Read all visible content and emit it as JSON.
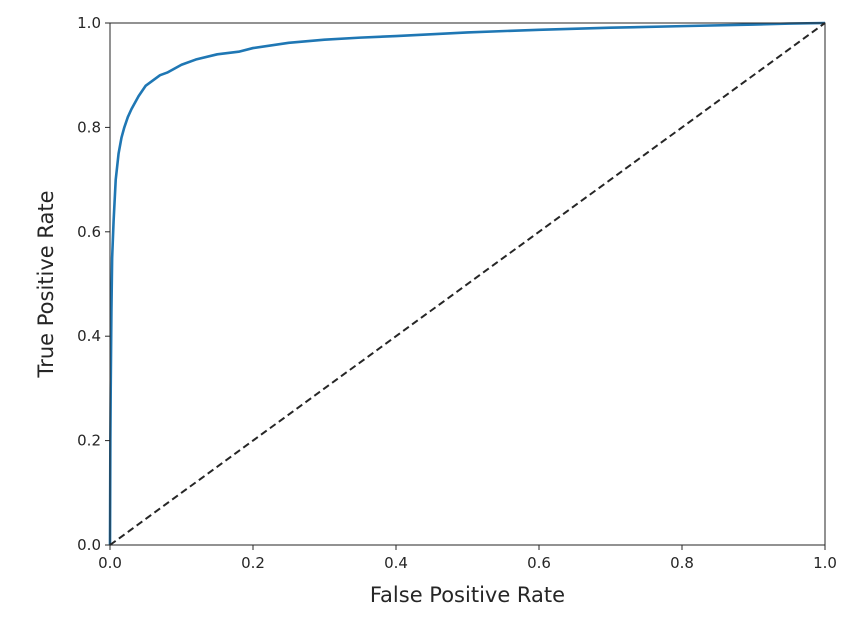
{
  "chart_data": {
    "type": "line",
    "title": "",
    "xlabel": "False Positive Rate",
    "ylabel": "True Positive Rate",
    "xlim": [
      0,
      1
    ],
    "ylim": [
      0,
      1
    ],
    "xticks": [
      0.0,
      0.2,
      0.4,
      0.6,
      0.8,
      1.0
    ],
    "yticks": [
      0.0,
      0.2,
      0.4,
      0.6,
      0.8,
      1.0
    ],
    "xtick_labels": [
      "0.0",
      "0.2",
      "0.4",
      "0.6",
      "0.8",
      "1.0"
    ],
    "ytick_labels": [
      "0.0",
      "0.2",
      "0.4",
      "0.6",
      "0.8",
      "1.0"
    ],
    "grid": false,
    "legend": "none",
    "series": [
      {
        "color": "#1f77b4",
        "linestyle": "solid",
        "x": [
          0,
          0.0005,
          0.001,
          0.002,
          0.003,
          0.005,
          0.008,
          0.012,
          0.016,
          0.02,
          0.025,
          0.03,
          0.04,
          0.05,
          0.06,
          0.07,
          0.08,
          0.1,
          0.12,
          0.15,
          0.18,
          0.2,
          0.25,
          0.3,
          0.35,
          0.4,
          0.5,
          0.6,
          0.7,
          0.8,
          0.9,
          0.95,
          1.0
        ],
        "y": [
          0,
          0.2,
          0.3,
          0.45,
          0.55,
          0.62,
          0.7,
          0.75,
          0.78,
          0.8,
          0.82,
          0.835,
          0.86,
          0.88,
          0.89,
          0.9,
          0.905,
          0.92,
          0.93,
          0.94,
          0.945,
          0.952,
          0.962,
          0.968,
          0.972,
          0.975,
          0.982,
          0.987,
          0.991,
          0.994,
          0.997,
          0.999,
          1.0
        ]
      },
      {
        "color": "#262626",
        "linestyle": "dashed",
        "x": [
          0,
          1
        ],
        "y": [
          0,
          1
        ]
      }
    ]
  }
}
